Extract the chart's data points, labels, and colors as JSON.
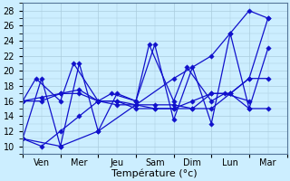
{
  "xlabel": "Température (°c)",
  "x_labels": [
    "Ven",
    "Mer",
    "Jeu",
    "Sam",
    "Dim",
    "Lun",
    "Mar"
  ],
  "ylim": [
    9,
    29
  ],
  "yticks": [
    10,
    12,
    14,
    16,
    18,
    20,
    22,
    24,
    26,
    28
  ],
  "background_color": "#cceeff",
  "grid_color": "#aaccdd",
  "line_color": "#1111cc",
  "figsize": [
    3.2,
    2.0
  ],
  "dpi": 100,
  "series": [
    {
      "x": [
        0.0,
        0.35,
        1.0,
        1.35,
        2.0,
        2.35,
        3.0,
        3.35,
        4.0,
        4.35,
        5.0,
        5.35,
        6.0
      ],
      "y": [
        16,
        19,
        16,
        21,
        16,
        17,
        16,
        23.5,
        16,
        20.5,
        16,
        17,
        16
      ]
    },
    {
      "x": [
        0.0,
        0.5,
        1.0,
        1.5,
        2.0,
        2.5,
        3.0,
        3.5,
        4.0,
        4.5,
        5.0,
        5.5,
        6.0,
        6.5
      ],
      "y": [
        11,
        19,
        10,
        21,
        12,
        17,
        16,
        23.5,
        13.5,
        20.5,
        13,
        25,
        15,
        23
      ]
    },
    {
      "x": [
        0.0,
        0.5,
        1.0,
        1.5,
        2.0,
        2.5,
        3.0,
        3.5,
        4.0,
        4.5,
        5.0,
        5.5,
        6.0,
        6.5
      ],
      "y": [
        11,
        10,
        12,
        14,
        16,
        15.5,
        15.5,
        15,
        15,
        16,
        17,
        17,
        19,
        27
      ]
    },
    {
      "x": [
        0.0,
        0.5,
        1.0,
        1.5,
        2.0,
        2.5,
        3.0,
        3.5,
        4.0,
        4.5,
        5.0,
        5.5,
        6.0,
        6.5
      ],
      "y": [
        16,
        16,
        17,
        17,
        16,
        16,
        15.5,
        15.5,
        15.5,
        15,
        17,
        17,
        15,
        15
      ]
    },
    {
      "x": [
        0.0,
        0.5,
        1.0,
        1.5,
        2.0,
        2.5,
        3.0,
        3.5,
        4.0,
        4.5,
        5.0,
        5.5,
        6.0,
        6.5
      ],
      "y": [
        16,
        16.5,
        17,
        17.5,
        16,
        16,
        15,
        15,
        15,
        15,
        15,
        17,
        19,
        19
      ]
    },
    {
      "x": [
        0.0,
        1.0,
        2.0,
        3.0,
        4.0,
        5.0,
        5.5,
        6.0,
        6.5
      ],
      "y": [
        11,
        10,
        12,
        15.5,
        19,
        22,
        25,
        28,
        27
      ]
    }
  ]
}
